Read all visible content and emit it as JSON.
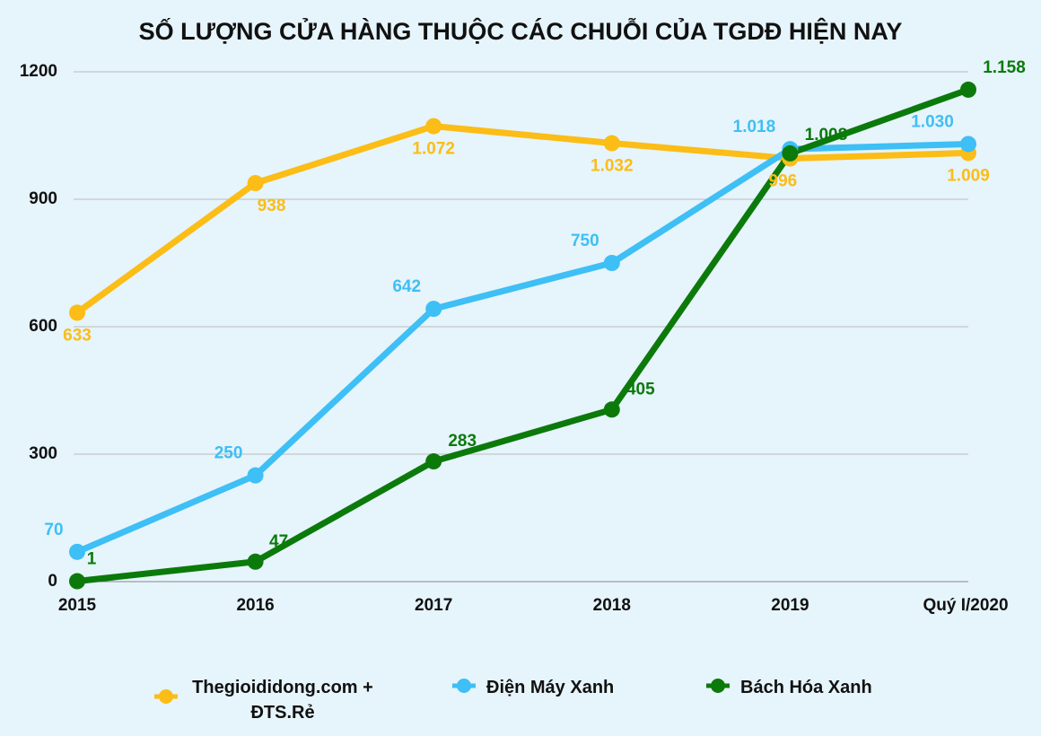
{
  "chart_data": {
    "type": "line",
    "title": "SỐ LƯỢNG CỬA HÀNG THUỘC CÁC CHUỖI CỦA TGDĐ HIỆN NAY",
    "categories": [
      "2015",
      "2016",
      "2017",
      "2018",
      "2019",
      "Quý I/2020"
    ],
    "series": [
      {
        "name": "Thegioididong.com + ĐTS.Rẻ",
        "color": "#fbbd16",
        "values": [
          633,
          938,
          1072,
          1032,
          996,
          1009
        ],
        "value_labels": [
          "633",
          "938",
          "1.072",
          "1.032",
          "996",
          "1.009"
        ]
      },
      {
        "name": "Điện Máy Xanh",
        "color": "#3ebff5",
        "values": [
          70,
          250,
          642,
          750,
          1018,
          1030
        ],
        "value_labels": [
          "70",
          "250",
          "642",
          "750",
          "1.018",
          "1.030"
        ]
      },
      {
        "name": "Bách Hóa Xanh",
        "color": "#0b7a0b",
        "values": [
          1,
          47,
          283,
          405,
          1008,
          1158
        ],
        "value_labels": [
          "1",
          "47",
          "283",
          "405",
          "1.008",
          "1.158"
        ]
      }
    ],
    "ylim": [
      0,
      1200
    ],
    "yticks": [
      0,
      300,
      600,
      900,
      1200
    ],
    "grid": true,
    "legend": "bottom"
  }
}
